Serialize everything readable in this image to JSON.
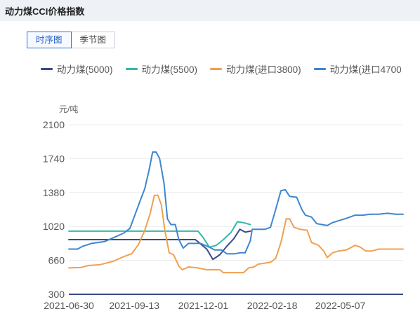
{
  "header": {
    "title": "动力煤CCI价格指数"
  },
  "tabs": [
    {
      "label": "时序图",
      "active": true
    },
    {
      "label": "季节图",
      "active": false
    }
  ],
  "legend": [
    {
      "label": "动力煤(5000)",
      "color": "#3a4a8c"
    },
    {
      "label": "动力煤(5500)",
      "color": "#35b8a8"
    },
    {
      "label": "动力煤(进口3800)",
      "color": "#f0a050"
    },
    {
      "label": "动力煤(进口4700",
      "color": "#3d86d0"
    }
  ],
  "chart_data": {
    "type": "line",
    "ylabel": "元/吨",
    "ylim": [
      300,
      2100
    ],
    "yticks": [
      300,
      660,
      1020,
      1380,
      1740,
      2100
    ],
    "xticks": [
      "2021-06-30",
      "2021-09-13",
      "2021-12-01",
      "2022-02-18",
      "2022-05-07"
    ],
    "xlim": [
      "2021-06-30",
      "2022-07-18"
    ],
    "grid": true,
    "series": [
      {
        "name": "动力煤(5000)",
        "color": "#3a4a8c",
        "points": [
          [
            "2021-06-30",
            880
          ],
          [
            "2021-11-10",
            880
          ],
          [
            "2021-11-22",
            880
          ],
          [
            "2021-12-05",
            780
          ],
          [
            "2021-12-12",
            670
          ],
          [
            "2021-12-20",
            720
          ],
          [
            "2021-12-28",
            810
          ],
          [
            "2022-01-05",
            890
          ],
          [
            "2022-01-12",
            990
          ],
          [
            "2022-01-18",
            960
          ],
          [
            "2022-01-24",
            970
          ]
        ]
      },
      {
        "name": "动力煤(5500)",
        "color": "#35b8a8",
        "points": [
          [
            "2021-06-30",
            970
          ],
          [
            "2021-11-10",
            970
          ],
          [
            "2021-11-25",
            970
          ],
          [
            "2021-12-01",
            900
          ],
          [
            "2021-12-08",
            800
          ],
          [
            "2021-12-16",
            820
          ],
          [
            "2021-12-24",
            880
          ],
          [
            "2022-01-02",
            960
          ],
          [
            "2022-01-09",
            1070
          ],
          [
            "2022-01-16",
            1060
          ],
          [
            "2022-01-24",
            1040
          ]
        ]
      },
      {
        "name": "动力煤(进口3800)",
        "color": "#f0a050",
        "points": [
          [
            "2021-06-30",
            580
          ],
          [
            "2021-07-14",
            585
          ],
          [
            "2021-07-22",
            605
          ],
          [
            "2021-08-05",
            615
          ],
          [
            "2021-08-20",
            650
          ],
          [
            "2021-09-01",
            700
          ],
          [
            "2021-09-10",
            730
          ],
          [
            "2021-09-18",
            830
          ],
          [
            "2021-09-25",
            980
          ],
          [
            "2021-10-01",
            1150
          ],
          [
            "2021-10-06",
            1350
          ],
          [
            "2021-10-10",
            1350
          ],
          [
            "2021-10-14",
            1250
          ],
          [
            "2021-10-18",
            980
          ],
          [
            "2021-10-23",
            740
          ],
          [
            "2021-10-28",
            720
          ],
          [
            "2021-11-03",
            600
          ],
          [
            "2021-11-07",
            560
          ],
          [
            "2021-11-14",
            590
          ],
          [
            "2021-11-25",
            580
          ],
          [
            "2021-12-05",
            560
          ],
          [
            "2021-12-20",
            560
          ],
          [
            "2021-12-24",
            530
          ],
          [
            "2022-01-10",
            530
          ],
          [
            "2022-01-16",
            530
          ],
          [
            "2022-01-22",
            580
          ],
          [
            "2022-01-28",
            590
          ],
          [
            "2022-02-02",
            620
          ],
          [
            "2022-02-16",
            640
          ],
          [
            "2022-02-22",
            680
          ],
          [
            "2022-02-28",
            850
          ],
          [
            "2022-03-06",
            1100
          ],
          [
            "2022-03-10",
            1100
          ],
          [
            "2022-03-15",
            1010
          ],
          [
            "2022-03-22",
            990
          ],
          [
            "2022-03-30",
            980
          ],
          [
            "2022-04-04",
            850
          ],
          [
            "2022-04-12",
            820
          ],
          [
            "2022-04-18",
            760
          ],
          [
            "2022-04-22",
            690
          ],
          [
            "2022-04-28",
            740
          ],
          [
            "2022-05-05",
            760
          ],
          [
            "2022-05-14",
            770
          ],
          [
            "2022-05-24",
            820
          ],
          [
            "2022-05-30",
            800
          ],
          [
            "2022-06-05",
            760
          ],
          [
            "2022-06-12",
            760
          ],
          [
            "2022-06-20",
            780
          ],
          [
            "2022-06-30",
            780
          ],
          [
            "2022-07-10",
            780
          ],
          [
            "2022-07-18",
            780
          ]
        ]
      },
      {
        "name": "动力煤(进口4700",
        "color": "#3d86d0",
        "points": [
          [
            "2021-06-30",
            780
          ],
          [
            "2021-07-10",
            780
          ],
          [
            "2021-07-16",
            810
          ],
          [
            "2021-07-26",
            840
          ],
          [
            "2021-08-10",
            860
          ],
          [
            "2021-08-20",
            900
          ],
          [
            "2021-09-01",
            950
          ],
          [
            "2021-09-08",
            1000
          ],
          [
            "2021-09-14",
            1150
          ],
          [
            "2021-09-20",
            1300
          ],
          [
            "2021-09-25",
            1420
          ],
          [
            "2021-09-30",
            1620
          ],
          [
            "2021-10-04",
            1810
          ],
          [
            "2021-10-08",
            1810
          ],
          [
            "2021-10-12",
            1740
          ],
          [
            "2021-10-17",
            1480
          ],
          [
            "2021-10-21",
            1100
          ],
          [
            "2021-10-25",
            1040
          ],
          [
            "2021-10-30",
            1040
          ],
          [
            "2021-11-03",
            880
          ],
          [
            "2021-11-08",
            790
          ],
          [
            "2021-11-14",
            840
          ],
          [
            "2021-11-28",
            840
          ],
          [
            "2021-12-08",
            800
          ],
          [
            "2021-12-14",
            770
          ],
          [
            "2021-12-22",
            770
          ],
          [
            "2021-12-28",
            730
          ],
          [
            "2022-01-06",
            730
          ],
          [
            "2022-01-12",
            740
          ],
          [
            "2022-01-18",
            740
          ],
          [
            "2022-01-24",
            870
          ],
          [
            "2022-01-26",
            990
          ],
          [
            "2022-02-10",
            990
          ],
          [
            "2022-02-16",
            1010
          ],
          [
            "2022-02-22",
            1200
          ],
          [
            "2022-02-28",
            1400
          ],
          [
            "2022-03-05",
            1410
          ],
          [
            "2022-03-10",
            1340
          ],
          [
            "2022-03-18",
            1330
          ],
          [
            "2022-03-24",
            1200
          ],
          [
            "2022-03-28",
            1140
          ],
          [
            "2022-04-04",
            1120
          ],
          [
            "2022-04-10",
            1050
          ],
          [
            "2022-04-16",
            1040
          ],
          [
            "2022-04-22",
            1030
          ],
          [
            "2022-04-28",
            1060
          ],
          [
            "2022-05-05",
            1080
          ],
          [
            "2022-05-12",
            1100
          ],
          [
            "2022-05-18",
            1120
          ],
          [
            "2022-05-24",
            1140
          ],
          [
            "2022-06-02",
            1140
          ],
          [
            "2022-06-10",
            1150
          ],
          [
            "2022-06-20",
            1150
          ],
          [
            "2022-06-30",
            1160
          ],
          [
            "2022-07-10",
            1150
          ],
          [
            "2022-07-18",
            1150
          ]
        ]
      }
    ]
  }
}
